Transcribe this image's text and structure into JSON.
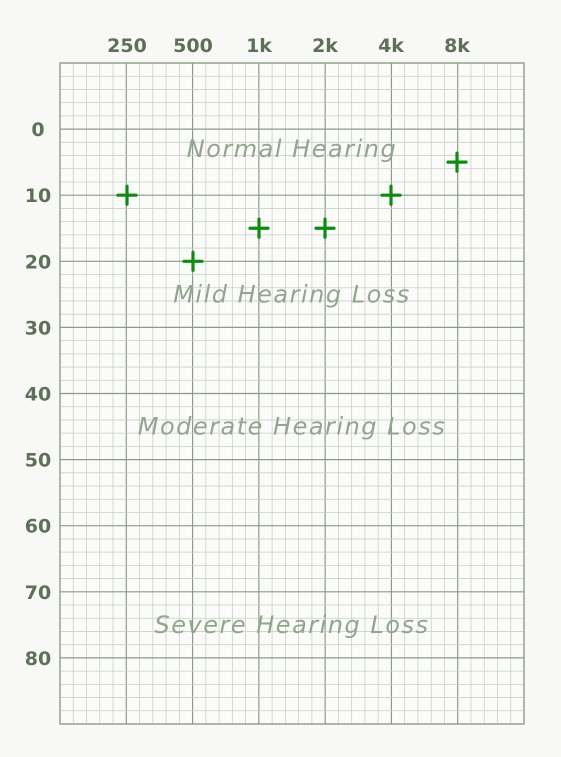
{
  "chart_data": {
    "type": "scatter",
    "x_categories": [
      "250",
      "500",
      "1k",
      "2k",
      "4k",
      "8k"
    ],
    "y_ticks": [
      "0",
      "10",
      "20",
      "30",
      "40",
      "50",
      "60",
      "70",
      "80"
    ],
    "ylim": [
      -10,
      90
    ],
    "y_inverted": true,
    "marker": "plus",
    "marker_color": "#0f8a13",
    "grid": true,
    "series": [
      {
        "x": [
          "250",
          "500",
          "1k",
          "2k",
          "4k",
          "8k"
        ],
        "values": [
          10,
          20,
          15,
          15,
          10,
          5
        ]
      }
    ],
    "regions": [
      {
        "label": "Normal Hearing",
        "y": 3
      },
      {
        "label": "Mild Hearing Loss",
        "y": 25
      },
      {
        "label": "Moderate Hearing Loss",
        "y": 45
      },
      {
        "label": "Severe Hearing Loss",
        "y": 75
      }
    ]
  },
  "colors": {
    "grid_major": "#8c9b89",
    "grid_minor": "#c9d0c7",
    "tick_text": "#5f6f5a",
    "region_text": "#93a58f"
  }
}
